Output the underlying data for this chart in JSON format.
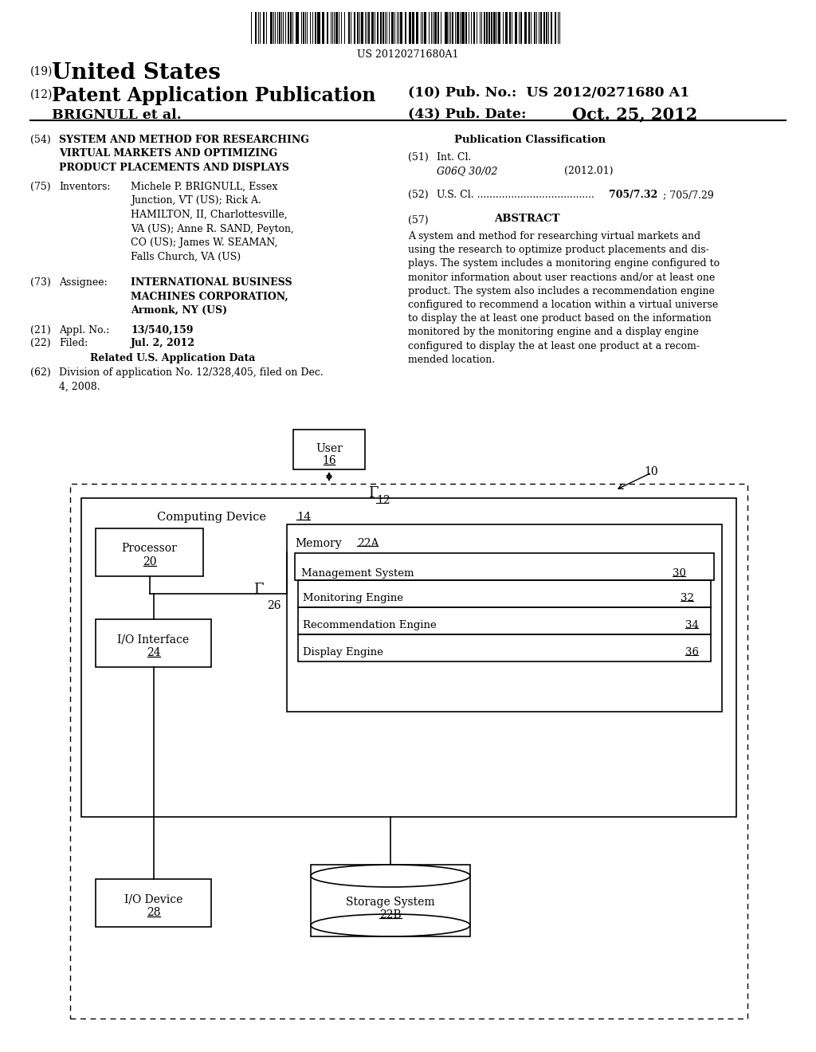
{
  "bg_color": "#ffffff",
  "barcode_text": "US 20120271680A1",
  "section19": "(19)",
  "title_us": "United States",
  "section12": "(12)",
  "title_pap": "Patent Application Publication",
  "pub_no": "(10) Pub. No.:  US 2012/0271680 A1",
  "inventor_name": "BRIGNULL et al.",
  "pub_date_label": "(43) Pub. Date:",
  "pub_date_val": "Oct. 25, 2012",
  "section54_num": "(54)",
  "section54_title": "SYSTEM AND METHOD FOR RESEARCHING\nVIRTUAL MARKETS AND OPTIMIZING\nPRODUCT PLACEMENTS AND DISPLAYS",
  "section75_num": "(75)",
  "section75_label": "Inventors:",
  "section75_text": "Michele P. BRIGNULL, Essex\nJunction, VT (US); Rick A.\nHAMILTON, II, Charlottesville,\nVA (US); Anne R. SAND, Peyton,\nCO (US); James W. SEAMAN,\nFalls Church, VA (US)",
  "section73_num": "(73)",
  "section73_label": "Assignee:",
  "section73_text": "INTERNATIONAL BUSINESS\nMACHINES CORPORATION,\nArmonk, NY (US)",
  "section21_num": "(21)",
  "section21_label": "Appl. No.:",
  "section21_val": "13/540,159",
  "section22_num": "(22)",
  "section22_label": "Filed:",
  "section22_val": "Jul. 2, 2012",
  "related_header": "Related U.S. Application Data",
  "section62_num": "(62)",
  "section62_text": "Division of application No. 12/328,405, filed on Dec.\n4, 2008.",
  "pub_class_header": "Publication Classification",
  "section51_num": "(51)",
  "section51_label": "Int. Cl.",
  "section51_class": "G06Q 30/02",
  "section51_year": "(2012.01)",
  "section52_num": "(52)",
  "section52_label": "U.S. Cl. ......................................",
  "section52_val_bold": "705/7.32",
  "section52_val_normal": "; 705/7.29",
  "section57_num": "(57)",
  "section57_header": "ABSTRACT",
  "abstract_text": "A system and method for researching virtual markets and\nusing the research to optimize product placements and dis-\nplays. The system includes a monitoring engine configured to\nmonitor information about user reactions and/or at least one\nproduct. The system also includes a recommendation engine\nconfigured to recommend a location within a virtual universe\nto display the at least one product based on the information\nmonitored by the monitoring engine and a display engine\nconfigured to display the at least one product at a recom-\nmended location.",
  "diag_user_label": "User",
  "diag_user_num": "16",
  "diag_ref10": "10",
  "diag_ref12": "12",
  "diag_cd_label": "Computing Device",
  "diag_cd_num": "14",
  "diag_proc_label": "Processor",
  "diag_proc_num": "20",
  "diag_mem_label": "Memory",
  "diag_mem_num": "22A",
  "diag_ms_label": "Management System",
  "diag_ms_num": "30",
  "diag_me_label": "Monitoring Engine",
  "diag_me_num": "32",
  "diag_re_label": "Recommendation Engine",
  "diag_re_num": "34",
  "diag_de_label": "Display Engine",
  "diag_de_num": "36",
  "diag_io_label": "I/O Interface",
  "diag_io_num": "24",
  "diag_bus_num": "26",
  "diag_iod_label": "I/O Device",
  "diag_iod_num": "28",
  "diag_stor_label": "Storage System",
  "diag_stor_num": "22B"
}
